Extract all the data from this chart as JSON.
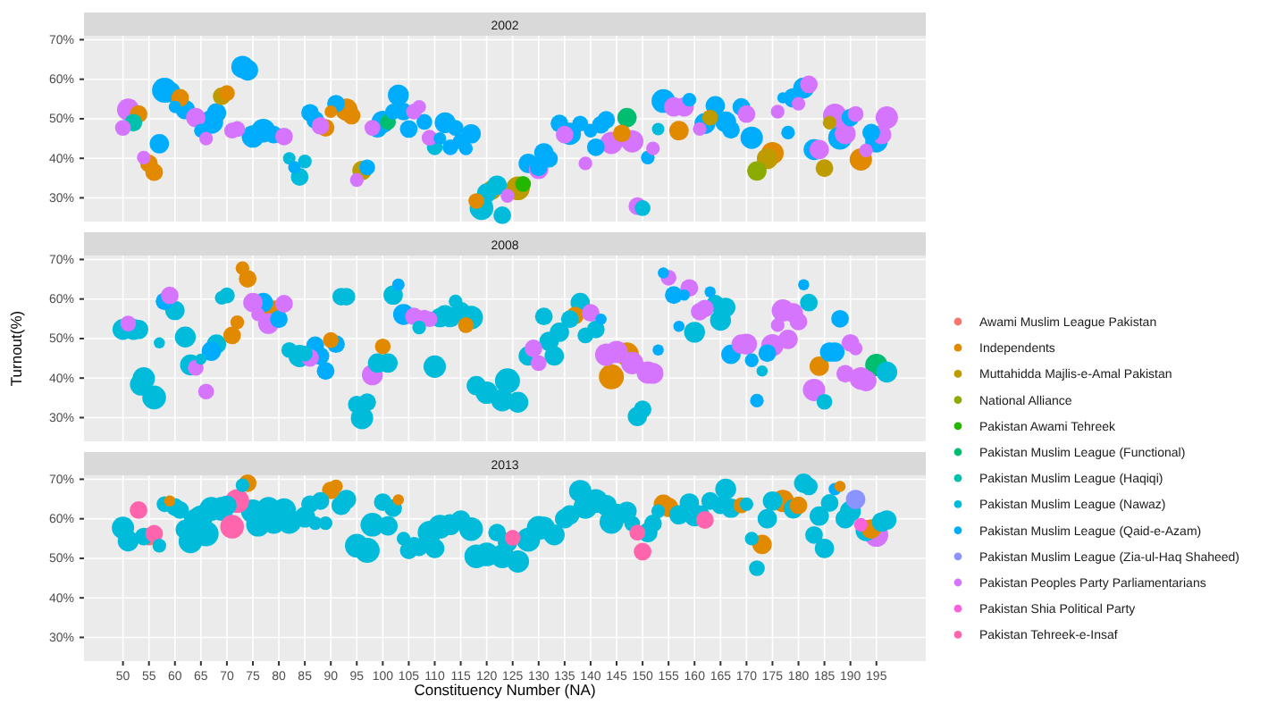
{
  "chart_data": [
    {
      "type": "bubble",
      "title": "2002",
      "legend": "right",
      "xlim": [
        42.5,
        204.5
      ],
      "xticks": [
        50,
        55,
        60,
        65,
        70,
        75,
        80,
        85,
        90,
        95,
        100,
        105,
        110,
        115,
        120,
        125,
        130,
        135,
        140,
        145,
        150,
        155,
        160,
        165,
        170,
        175,
        180,
        185,
        190,
        195
      ],
      "ylim": [
        24,
        71
      ],
      "yticks": [
        {
          "value": 30,
          "label": "30%"
        },
        {
          "value": 40,
          "label": "40%"
        },
        {
          "value": 50,
          "label": "50%"
        },
        {
          "value": 60,
          "label": "60%"
        },
        {
          "value": 70,
          "label": "70%"
        }
      ],
      "tick_labels": "y",
      "grid": true,
      "series": [
        {
          "name": "Independents",
          "color": "#e18a00",
          "x": [
            53,
            55,
            56,
            61,
            70,
            89,
            90,
            93,
            94,
            118,
            146,
            157,
            175,
            192
          ],
          "values": [
            51.2,
            38.7,
            36.5,
            55.3,
            56.5,
            47.7,
            51.8,
            52.3,
            50.8,
            29.2,
            46.3,
            47,
            41.3,
            39.7
          ],
          "sizes": [
            0.5,
            0.5,
            0.5,
            0.5,
            0.4,
            0.5,
            0.25,
            0.8,
            0.5,
            0.4,
            0.5,
            0.6,
            0.8,
            0.8
          ]
        },
        {
          "name": "Muttahidda Majlis-e-Amal Pakistan",
          "color": "#be9c00",
          "x": [
            69,
            96,
            121,
            126,
            163,
            174,
            185,
            186
          ],
          "values": [
            55.7,
            36.9,
            32,
            32.4,
            50.3,
            39.9,
            37.5,
            49
          ],
          "sizes": [
            0.5,
            0.6,
            0.6,
            0.9,
            0.4,
            0.7,
            0.5,
            0.3
          ]
        },
        {
          "name": "National Alliance",
          "color": "#8cab00",
          "x": [
            172
          ],
          "values": [
            36.8
          ],
          "sizes": [
            0.6
          ]
        },
        {
          "name": "Pakistan Awami Tehreek",
          "color": "#24b700",
          "x": [
            127
          ],
          "values": [
            33.5
          ],
          "sizes": [
            0.4
          ]
        },
        {
          "name": "Pakistan Muslim League (Functional)",
          "color": "#00be70",
          "x": [
            101,
            147
          ],
          "values": [
            49.2,
            50.3
          ],
          "sizes": [
            0.4,
            0.6
          ]
        },
        {
          "name": "Pakistan Muslim League (Haqiqi)",
          "color": "#00c1ab",
          "x": [
            52
          ],
          "values": [
            49
          ],
          "sizes": [
            0.5
          ]
        },
        {
          "name": "Pakistan Muslim League (Nawaz)",
          "color": "#00bbda",
          "x": [
            82,
            84,
            85,
            110,
            119,
            120,
            122,
            123,
            150,
            153
          ],
          "values": [
            40,
            35.3,
            39.2,
            42.8,
            27.4,
            31.2,
            33.2,
            25.6,
            27.4,
            47.4
          ],
          "sizes": [
            0.25,
            0.5,
            0.3,
            0.4,
            0.9,
            0.6,
            0.6,
            0.5,
            0.4,
            0.25
          ]
        },
        {
          "name": "Pakistan Muslim League (Qaid-e-Azam)",
          "color": "#00acfc",
          "x": [
            57,
            58,
            59,
            60,
            62,
            65,
            67,
            68,
            73,
            74,
            75,
            77,
            79,
            83,
            86,
            87,
            91,
            97,
            99,
            100,
            102,
            103,
            104,
            105,
            108,
            111,
            112,
            113,
            114,
            115,
            116,
            117,
            128,
            130,
            131,
            132,
            134,
            136,
            138,
            140,
            141,
            142,
            143,
            151,
            154,
            159,
            162,
            164,
            166,
            167,
            169,
            171,
            177,
            178,
            179,
            181,
            183,
            188,
            190,
            194,
            195
          ],
          "values": [
            43.7,
            57.2,
            56.8,
            53,
            52.3,
            47,
            49.2,
            51.5,
            63.1,
            62.3,
            45.5,
            47,
            46,
            37.7,
            51.5,
            49.7,
            53.8,
            37.7,
            47.7,
            49.2,
            51.8,
            56,
            51.8,
            47.4,
            49.2,
            45,
            49,
            42.8,
            47.7,
            44.3,
            42.5,
            46.2,
            38.7,
            37.7,
            41.4,
            39.9,
            48.8,
            46.2,
            48.8,
            47,
            42.8,
            48.5,
            49.7,
            40.2,
            54.5,
            54.8,
            48.8,
            53.3,
            49.2,
            47.2,
            53,
            45.2,
            55.3,
            46.5,
            55.3,
            57.8,
            42.2,
            45.2,
            50.3,
            46.5,
            44.3
          ],
          "sizes": [
            0.6,
            1,
            0.7,
            0.25,
            0.6,
            0.3,
            0.9,
            0.6,
            0.8,
            0.7,
            0.8,
            0.9,
            0.5,
            0.25,
            0.5,
            0.5,
            0.5,
            0.4,
            0.6,
            0.8,
            0.4,
            0.7,
            0.5,
            0.5,
            0.4,
            0.25,
            0.7,
            0.4,
            0.4,
            0.4,
            0.3,
            0.6,
            0.6,
            0.5,
            0.6,
            0.5,
            0.5,
            0.8,
            0.4,
            0.3,
            0.5,
            0.5,
            0.5,
            0.3,
            0.9,
            0.3,
            0.7,
            0.6,
            0.7,
            0.5,
            0.5,
            0.8,
            0.2,
            0.3,
            0.6,
            0.7,
            0.7,
            0.9,
            0.5,
            0.5,
            0.8
          ]
        },
        {
          "name": "Pakistan Peoples Party Parliamentarians",
          "color": "#d575fe",
          "x": [
            50,
            51,
            54,
            64,
            66,
            71,
            72,
            81,
            88,
            95,
            98,
            106,
            107,
            109,
            124,
            130,
            135,
            139,
            144,
            148,
            149,
            152,
            156,
            158,
            161,
            170,
            176,
            180,
            182,
            184,
            187,
            189,
            191,
            193,
            196,
            197
          ],
          "values": [
            47.7,
            52.3,
            40.2,
            50.3,
            45,
            47,
            47.4,
            45.5,
            48.2,
            34.5,
            47.7,
            51.8,
            53,
            45.2,
            30.5,
            37.2,
            46,
            38.7,
            43.9,
            44.3,
            27.9,
            42.5,
            53,
            53,
            47.4,
            51.2,
            51.8,
            53.8,
            58.7,
            42.2,
            50.8,
            46.2,
            51.2,
            42,
            46,
            50.3
          ],
          "sizes": [
            0.4,
            0.8,
            0.3,
            0.6,
            0.3,
            0.4,
            0.4,
            0.5,
            0.5,
            0.3,
            0.4,
            0.4,
            0.3,
            0.4,
            0.3,
            0.6,
            0.5,
            0.3,
            0.8,
            0.8,
            0.5,
            0.3,
            0.6,
            0.6,
            0.3,
            0.5,
            0.3,
            0.3,
            0.5,
            0.6,
            0.9,
            0.7,
            0.4,
            0.3,
            0.6,
            0.8
          ]
        }
      ]
    },
    {
      "type": "bubble",
      "title": "2008",
      "xlim": [
        42.5,
        204.5
      ],
      "xticks": [
        50,
        55,
        60,
        65,
        70,
        75,
        80,
        85,
        90,
        95,
        100,
        105,
        110,
        115,
        120,
        125,
        130,
        135,
        140,
        145,
        150,
        155,
        160,
        165,
        170,
        175,
        180,
        185,
        190,
        195
      ],
      "ylim": [
        24,
        71
      ],
      "yticks": [
        {
          "value": 30,
          "label": "30%"
        },
        {
          "value": 40,
          "label": "40%"
        },
        {
          "value": 50,
          "label": "50%"
        },
        {
          "value": 60,
          "label": "60%"
        },
        {
          "value": 70,
          "label": "70%"
        }
      ],
      "tick_labels": "y",
      "grid": true,
      "ylabel": "Turnout(%)",
      "legend": "right",
      "series": [
        {
          "name": "Independents",
          "color": "#e18a00",
          "x": [
            71,
            72,
            73,
            74,
            79,
            90,
            100,
            116,
            137,
            144,
            147,
            184
          ],
          "values": [
            50.8,
            54.1,
            67.8,
            65.1,
            56.8,
            49.6,
            48,
            53.4,
            55.8,
            40.3,
            46,
            43
          ],
          "sizes": [
            0.5,
            0.3,
            0.3,
            0.5,
            0.8,
            0.4,
            0.4,
            0.4,
            0.5,
            1,
            0.9,
            0.6
          ]
        },
        {
          "name": "Pakistan Muslim League (Functional)",
          "color": "#00be70",
          "x": [
            195
          ],
          "values": [
            43.3
          ],
          "sizes": [
            0.8
          ]
        },
        {
          "name": "Pakistan Muslim League (Nawaz)",
          "color": "#00bbda",
          "x": [
            50,
            52,
            53,
            53.5,
            54,
            56,
            57,
            60,
            62,
            63,
            65,
            68,
            69,
            70,
            82,
            84,
            85,
            92,
            93,
            95,
            96,
            97,
            99,
            101,
            102,
            107,
            110,
            111,
            112,
            113,
            114,
            115,
            117,
            118,
            120,
            123,
            124,
            126,
            128,
            131,
            132,
            133,
            134,
            136,
            138,
            139,
            141,
            149,
            150,
            160,
            164,
            165,
            166,
            173,
            182,
            185,
            197
          ],
          "values": [
            52.3,
            52.3,
            52.3,
            38.4,
            39.9,
            35.1,
            48.9,
            57.1,
            50.4,
            43.3,
            44.8,
            48.6,
            60.3,
            60.9,
            47.1,
            45.6,
            46.2,
            60.6,
            60.6,
            33.3,
            29.9,
            33.9,
            43.8,
            43.8,
            61,
            52.8,
            42.9,
            55.3,
            55.8,
            55.3,
            59.4,
            56.8,
            55.3,
            38.1,
            36.3,
            34.4,
            39.3,
            33.9,
            45.6,
            55.6,
            49.3,
            45.6,
            51.6,
            54.9,
            59.1,
            50.8,
            52.3,
            30.3,
            32.1,
            51.6,
            58.8,
            54.6,
            57.9,
            41.8,
            59.1,
            34,
            41.5
          ],
          "sizes": [
            0.7,
            0.7,
            0.6,
            0.8,
            0.8,
            0.9,
            0.2,
            0.6,
            0.7,
            0.7,
            0.2,
            0.6,
            0.3,
            0.4,
            0.4,
            0.8,
            0.4,
            0.5,
            0.5,
            0.5,
            0.8,
            0.5,
            0.6,
            0.6,
            0.6,
            0.3,
            0.8,
            0.6,
            0.7,
            0.6,
            0.3,
            0.6,
            0.9,
            0.6,
            0.8,
            0.8,
            1,
            0.7,
            0.6,
            0.5,
            0.6,
            0.6,
            0.6,
            0.5,
            0.6,
            0.4,
            0.5,
            0.6,
            0.5,
            0.7,
            0.5,
            0.7,
            0.6,
            0.2,
            0.5,
            0.4,
            0.7
          ]
        },
        {
          "name": "Pakistan Muslim League (Qaid-e-Azam)",
          "color": "#00acfc",
          "x": [
            58,
            67,
            77,
            80,
            87,
            88,
            89,
            91,
            103,
            104,
            142,
            153,
            154,
            156,
            157,
            158,
            163,
            167,
            171,
            172,
            174,
            181,
            186,
            187,
            188
          ],
          "values": [
            59.4,
            46.8,
            59.1,
            54.9,
            48.3,
            45.6,
            41.8,
            48.6,
            63.6,
            56.1,
            54.9,
            47.1,
            66.6,
            61,
            53.1,
            61,
            61.8,
            46,
            44.5,
            34.3,
            46.3,
            63.6,
            46.6,
            46.6,
            55
          ],
          "sizes": [
            0.5,
            0.6,
            0.6,
            0.5,
            0.5,
            0.5,
            0.5,
            0.5,
            0.25,
            0.7,
            0.2,
            0.2,
            0.2,
            0.5,
            0.2,
            0.2,
            0.2,
            0.6,
            0.3,
            0.3,
            0.5,
            0.2,
            0.6,
            0.6,
            0.5
          ]
        },
        {
          "name": "Pakistan Peoples Party Parliamentarians",
          "color": "#d575fe",
          "x": [
            51,
            59,
            64,
            66,
            75,
            76,
            78,
            81,
            86,
            98,
            106,
            108,
            109,
            129,
            130,
            140,
            143,
            145,
            148,
            151,
            152,
            155,
            159,
            161,
            162,
            169,
            170,
            175,
            176,
            177,
            178,
            179,
            180,
            183,
            189,
            190,
            191,
            192,
            193
          ],
          "values": [
            53.8,
            60.9,
            42.6,
            36.6,
            59.1,
            56.1,
            53.8,
            58.8,
            45.1,
            40.8,
            55.6,
            55.3,
            54.9,
            47.5,
            43.8,
            56.5,
            45.9,
            46.6,
            43.8,
            41.4,
            41.2,
            65.4,
            62.8,
            56.8,
            57.6,
            48.6,
            48.6,
            48.3,
            53.4,
            57.1,
            49.8,
            56.5,
            54.3,
            37,
            41.1,
            48.9,
            47.5,
            39.9,
            39.3
          ],
          "sizes": [
            0.4,
            0.5,
            0.4,
            0.4,
            0.6,
            0.3,
            0.7,
            0.5,
            0.5,
            0.7,
            0.5,
            0.4,
            0.4,
            0.5,
            0.4,
            0.5,
            0.8,
            0.8,
            0.8,
            0.8,
            0.7,
            0.4,
            0.5,
            0.5,
            0.5,
            0.6,
            0.7,
            0.8,
            0.3,
            0.8,
            0.6,
            0.6,
            0.5,
            0.8,
            0.5,
            0.5,
            0.3,
            0.8,
            0.7
          ]
        }
      ]
    },
    {
      "type": "bubble",
      "title": "2013",
      "legend": "right",
      "xlim": [
        42.5,
        204.5
      ],
      "xticks": [
        50,
        55,
        60,
        65,
        70,
        75,
        80,
        85,
        90,
        95,
        100,
        105,
        110,
        115,
        120,
        125,
        130,
        135,
        140,
        145,
        150,
        155,
        160,
        165,
        170,
        175,
        180,
        185,
        190,
        195
      ],
      "ylim": [
        24,
        71
      ],
      "yticks": [
        {
          "value": 30,
          "label": "30%"
        },
        {
          "value": 40,
          "label": "40%"
        },
        {
          "value": 50,
          "label": "50%"
        },
        {
          "value": 60,
          "label": "60%"
        },
        {
          "value": 70,
          "label": "70%"
        }
      ],
      "grid": true,
      "xlabel": "Constituency Number (NA)",
      "series": [
        {
          "name": "Awami Muslim League Pakistan",
          "color": "#f8766d",
          "x": [
            55
          ],
          "values": [
            55.5
          ],
          "sizes": [
            0.5
          ]
        },
        {
          "name": "Independents",
          "color": "#e18a00",
          "x": [
            59,
            74,
            90,
            91,
            103,
            154,
            155,
            169,
            173,
            177,
            180,
            188,
            194
          ],
          "values": [
            64.5,
            69,
            67.2,
            68.2,
            64.8,
            63.7,
            62.9,
            63.4,
            53.5,
            64.5,
            63.4,
            68.2,
            57.4
          ],
          "sizes": [
            0.2,
            0.5,
            0.5,
            0.3,
            0.2,
            0.6,
            0.6,
            0.4,
            0.6,
            0.8,
            0.5,
            0.2,
            0.6
          ]
        },
        {
          "name": "Pakistan Muslim League (Nawaz)",
          "color": "#00bbda",
          "x": [
            50,
            51,
            54,
            57,
            58,
            60,
            61,
            62,
            63,
            64,
            65,
            66,
            67,
            69,
            70,
            73,
            75,
            76,
            78,
            79,
            81,
            82,
            85,
            86,
            87,
            88,
            89,
            92,
            93,
            95,
            97,
            98,
            100,
            101,
            102,
            104,
            105,
            106,
            107,
            109,
            110,
            111,
            113,
            115,
            117,
            118,
            120,
            122,
            123,
            124,
            126,
            128,
            130,
            131,
            133,
            135,
            136,
            138,
            139,
            141,
            143,
            144,
            145,
            147,
            148,
            151,
            152,
            153,
            157,
            159,
            160,
            161,
            163,
            165,
            166,
            167,
            170,
            171,
            172,
            174,
            175,
            179,
            181,
            182,
            183,
            184,
            185,
            186,
            189,
            190,
            193,
            196,
            197
          ],
          "values": [
            57.7,
            54.4,
            55.5,
            53.2,
            63.7,
            63,
            62.2,
            57.3,
            54.3,
            59.5,
            60.4,
            56.2,
            62.5,
            62.5,
            63.4,
            68.5,
            61.9,
            58.5,
            62.5,
            59.2,
            62.2,
            59.2,
            60.4,
            63.7,
            58.9,
            64.5,
            58.9,
            63.4,
            64.9,
            53.2,
            52,
            58.5,
            64.2,
            58.2,
            62.7,
            55,
            52,
            53.2,
            52.8,
            56.5,
            52.5,
            58,
            58.5,
            59.7,
            57.4,
            50.5,
            51,
            56.5,
            50.5,
            54,
            49.2,
            54.7,
            57.7,
            57.7,
            55.9,
            60,
            61,
            67,
            63,
            64.5,
            63.4,
            59.2,
            61,
            61.9,
            58.8,
            56.5,
            58.8,
            61.9,
            61,
            64,
            60.7,
            61,
            64.5,
            63.4,
            67.5,
            62.7,
            63.7,
            55,
            47.5,
            60,
            64.5,
            62.5,
            69,
            68.2,
            55.9,
            60.7,
            52.5,
            64,
            60,
            61.9,
            57,
            59.2,
            59.7
          ],
          "sizes": [
            0.8,
            0.7,
            0.5,
            0.3,
            0.4,
            0.5,
            0.5,
            0.6,
            0.9,
            0.9,
            0.9,
            1,
            0.9,
            0.9,
            0.6,
            0.3,
            0.9,
            0.9,
            0.9,
            0.9,
            0.9,
            0.9,
            0.7,
            0.5,
            0.3,
            0.5,
            0.3,
            0.6,
            0.6,
            0.9,
            1,
            0.9,
            0.5,
            0.6,
            0.5,
            0.3,
            0.5,
            0.5,
            0.5,
            0.9,
            0.6,
            0.9,
            0.7,
            0.6,
            0.9,
            0.9,
            0.9,
            0.5,
            0.9,
            0.6,
            0.8,
            0.9,
            0.9,
            0.8,
            0.7,
            0.6,
            0.6,
            0.8,
            0.9,
            0.9,
            0.7,
            0.9,
            0.8,
            0.6,
            0.4,
            0.6,
            0.5,
            0.3,
            0.6,
            0.6,
            0.7,
            0.6,
            0.5,
            0.5,
            0.7,
            0.6,
            0.3,
            0.3,
            0.4,
            0.6,
            0.6,
            0.6,
            0.6,
            0.5,
            0.5,
            0.6,
            0.6,
            0.5,
            0.6,
            0.7,
            0.7,
            0.6,
            0.6
          ]
        },
        {
          "name": "Pakistan Muslim League (Qaid-e-Azam)",
          "color": "#00acfc",
          "x": [
            187
          ],
          "values": [
            67.5
          ],
          "sizes": [
            0.25
          ]
        },
        {
          "name": "Pakistan Muslim League (Zia-ul-Haq Shaheed)",
          "color": "#8b93ff",
          "x": [
            191
          ],
          "values": [
            64.9
          ],
          "sizes": [
            0.6
          ]
        },
        {
          "name": "Pakistan Peoples Party Parliamentarians",
          "color": "#d575fe",
          "x": [
            195
          ],
          "values": [
            55.9
          ],
          "sizes": [
            0.9
          ]
        },
        {
          "name": "Pakistan Shia Political Party",
          "color": "#f962dd",
          "x": [
            192
          ],
          "values": [
            58.5
          ],
          "sizes": [
            0.3
          ]
        },
        {
          "name": "Pakistan Tehreek-e-Insaf",
          "color": "#ff65ac",
          "x": [
            53,
            56,
            71,
            72,
            125,
            149,
            150,
            162
          ],
          "values": [
            62.2,
            56.2,
            58,
            64.5,
            55.2,
            56.5,
            51.7,
            59.7
          ],
          "sizes": [
            0.5,
            0.5,
            0.9,
            0.9,
            0.4,
            0.4,
            0.5,
            0.5
          ]
        }
      ]
    }
  ]
}
